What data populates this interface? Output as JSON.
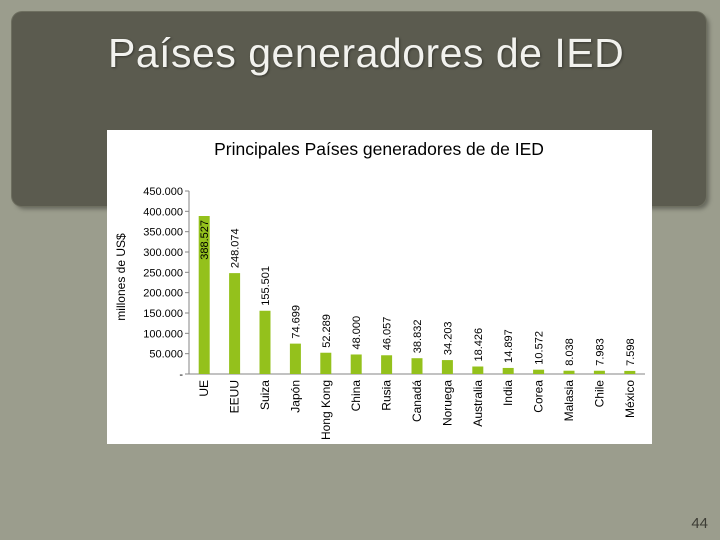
{
  "slide": {
    "title": "Países generadores de IED",
    "page_number": "44"
  },
  "colors": {
    "bar": "#94c11c",
    "axis": "#868686",
    "text": "#000000"
  },
  "chart_data": {
    "type": "bar",
    "title": "Principales Países generadores de de IED",
    "xlabel": "",
    "ylabel": "millones de US$",
    "ylim": [
      0,
      450000
    ],
    "ytick_labels": [
      "-",
      "50.000",
      "100.000",
      "150.000",
      "200.000",
      "250.000",
      "300.000",
      "350.000",
      "400.000",
      "450.000"
    ],
    "grid": false,
    "legend": "none",
    "categories": [
      "UE",
      "EEUU",
      "Suiza",
      "Japón",
      "Hong Kong",
      "China",
      "Rusia",
      "Canadá",
      "Noruega",
      "Australia",
      "India",
      "Corea",
      "Malasia",
      "Chile",
      "México"
    ],
    "values": [
      388527,
      248074,
      155501,
      74699,
      52289,
      48000,
      46057,
      38832,
      34203,
      18426,
      14897,
      10572,
      8038,
      7983,
      7598
    ],
    "value_labels": [
      "388.527",
      "248.074",
      "155.501",
      "74.699",
      "52.289",
      "48.000",
      "46.057",
      "38.832",
      "34.203",
      "18.426",
      "14.897",
      "10.572",
      "8.038",
      "7.983",
      "7.598"
    ]
  }
}
